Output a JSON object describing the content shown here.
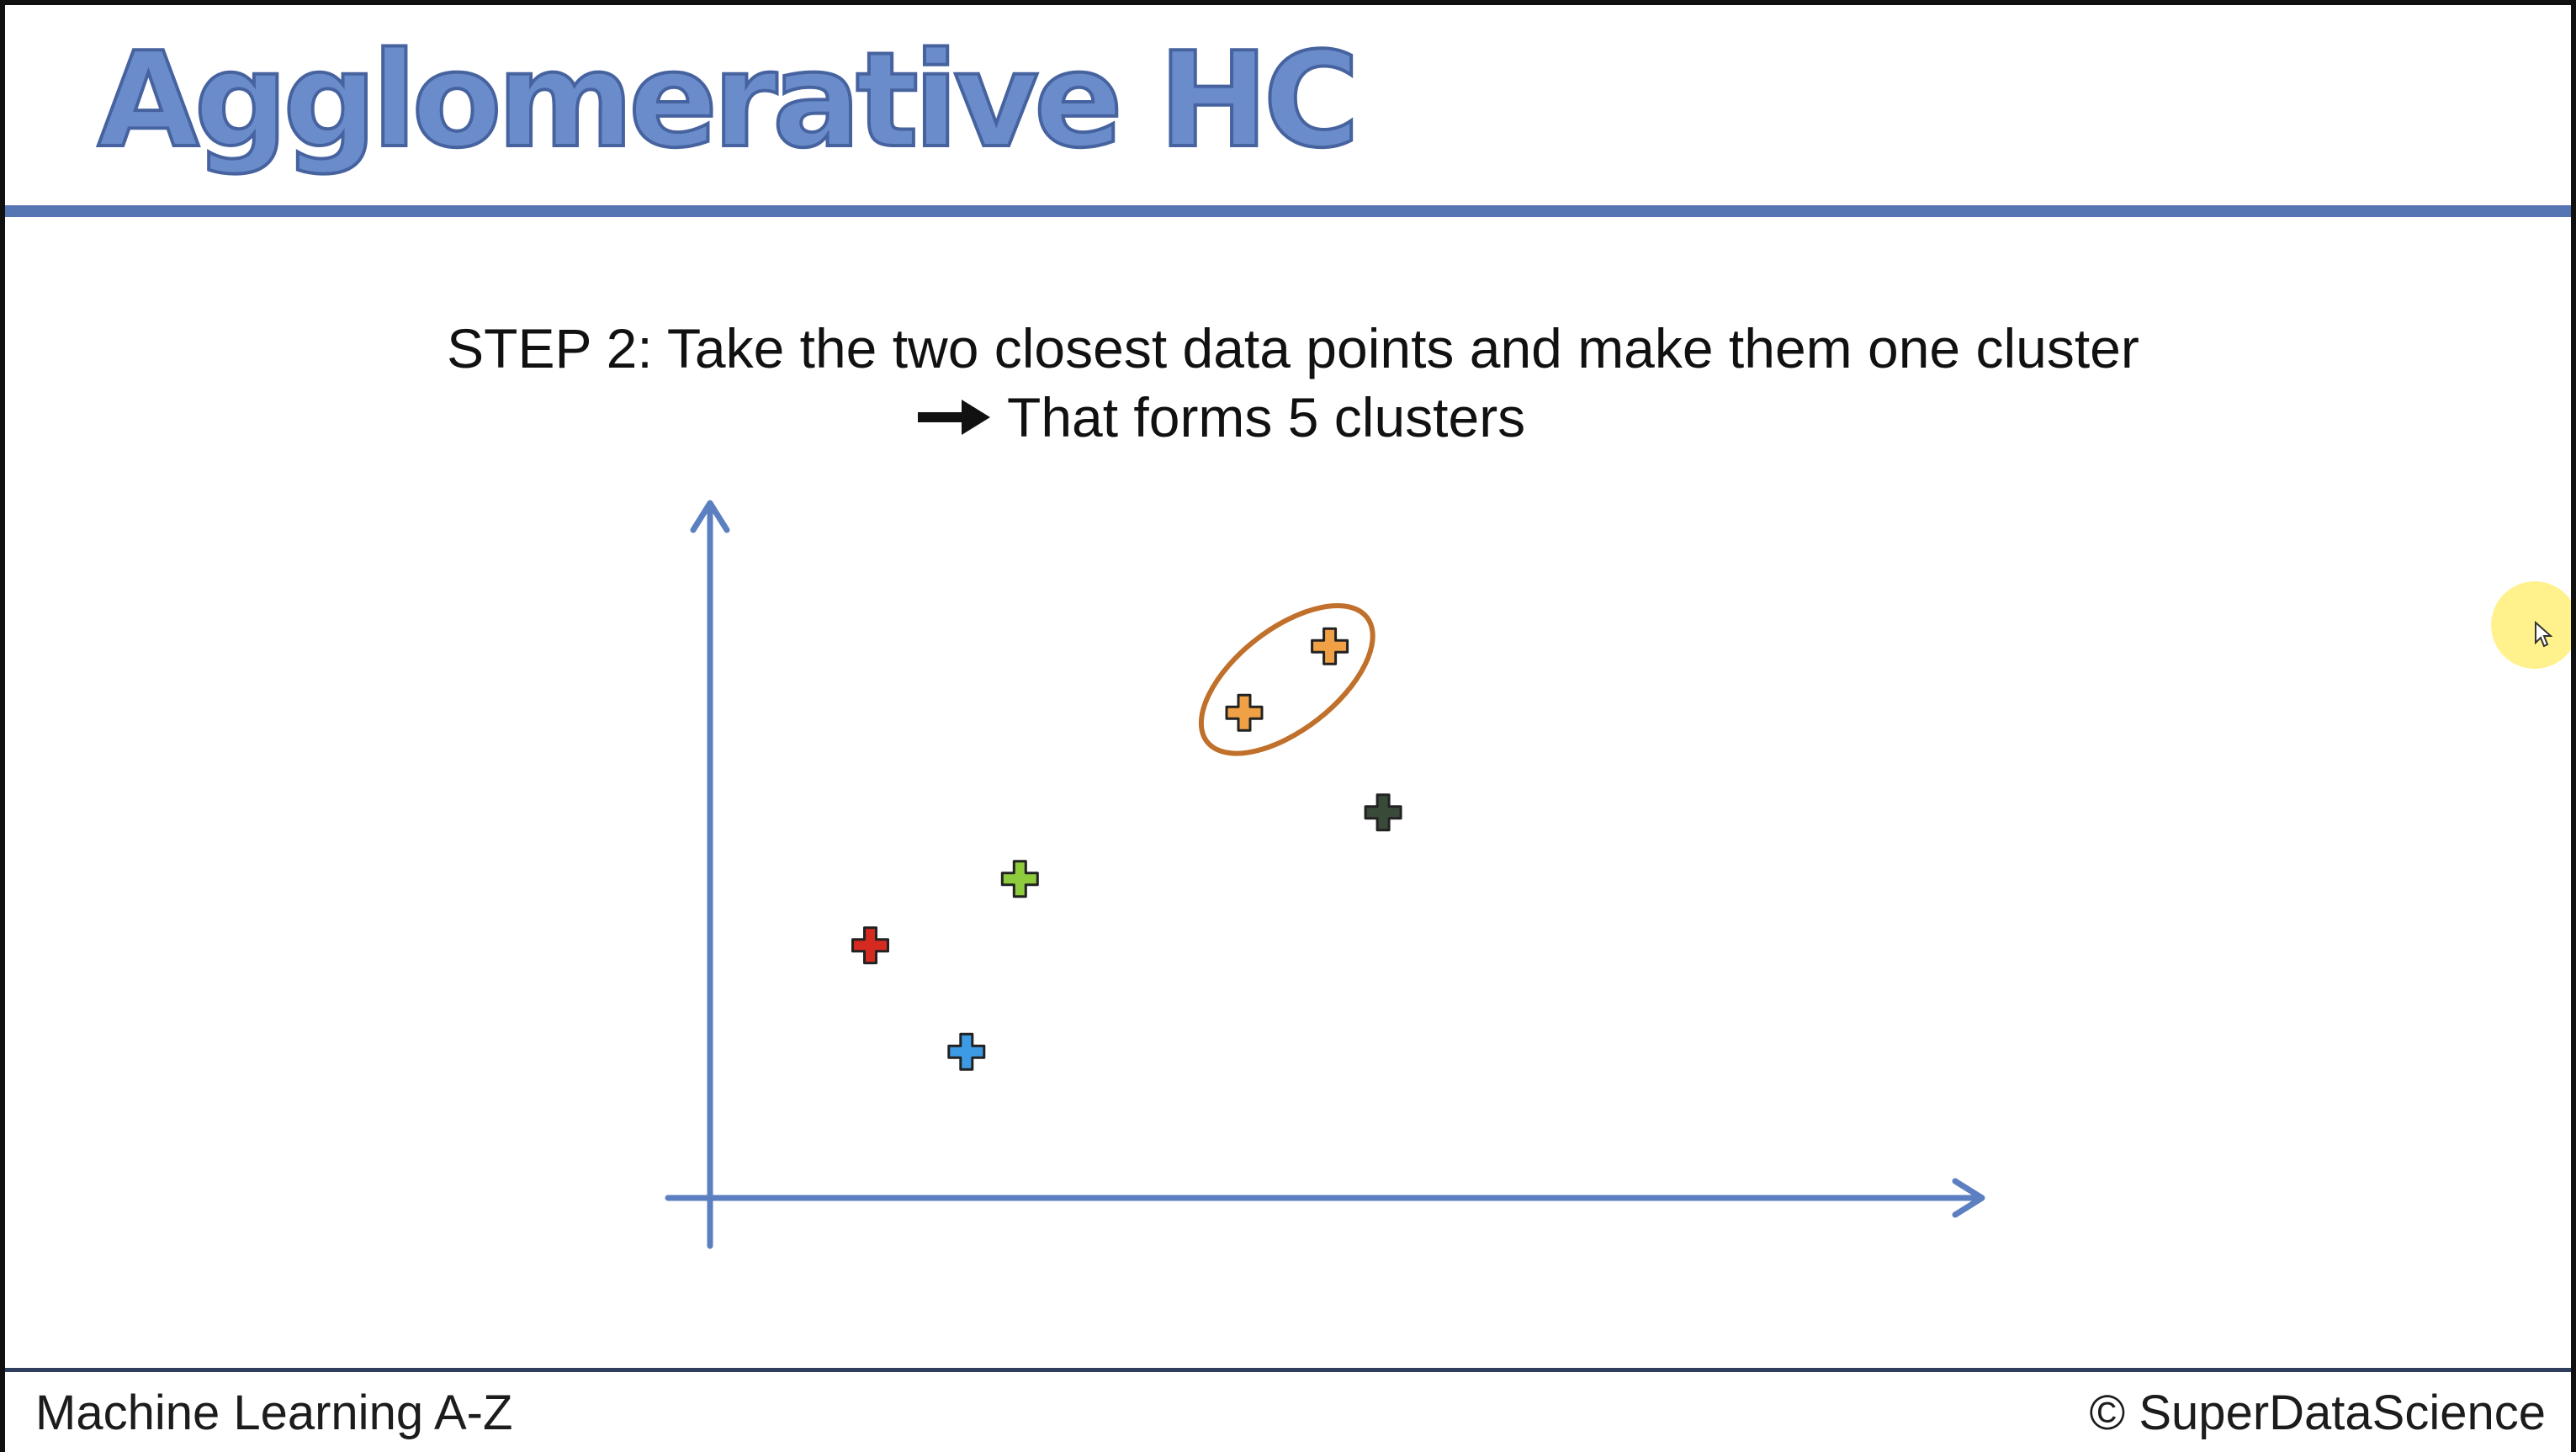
{
  "title": "Agglomerative HC",
  "step": {
    "label": "STEP 2",
    "text": ": Take the two closest data points and make them one cluster"
  },
  "result": {
    "icon": "right-arrow-icon",
    "text": "That forms 5 clusters"
  },
  "footer": {
    "left": "Machine Learning A-Z",
    "right": "© SuperDataScience"
  },
  "colors": {
    "title": "#6a8ccb",
    "rule": "#5575b3",
    "axis": "#5b7fc0",
    "cluster_outline": "#c0702a"
  },
  "chart_data": {
    "type": "scatter",
    "title": "",
    "xlabel": "",
    "ylabel": "",
    "xlim": [
      0,
      10
    ],
    "ylim": [
      0,
      10
    ],
    "grid": false,
    "points": [
      {
        "x": 1.5,
        "y": 3.8,
        "color": "#d42a20",
        "cluster": 1
      },
      {
        "x": 2.4,
        "y": 2.2,
        "color": "#3d9be6",
        "cluster": 2
      },
      {
        "x": 2.9,
        "y": 4.8,
        "color": "#8ecc3e",
        "cluster": 3
      },
      {
        "x": 5.0,
        "y": 7.3,
        "color": "#f0a045",
        "cluster": 4
      },
      {
        "x": 5.8,
        "y": 8.3,
        "color": "#f0a045",
        "cluster": 4
      },
      {
        "x": 6.3,
        "y": 5.8,
        "color": "#3a4a38",
        "cluster": 5
      }
    ],
    "highlighted_cluster": {
      "cluster": 4,
      "outline_color": "#c0702a"
    }
  }
}
